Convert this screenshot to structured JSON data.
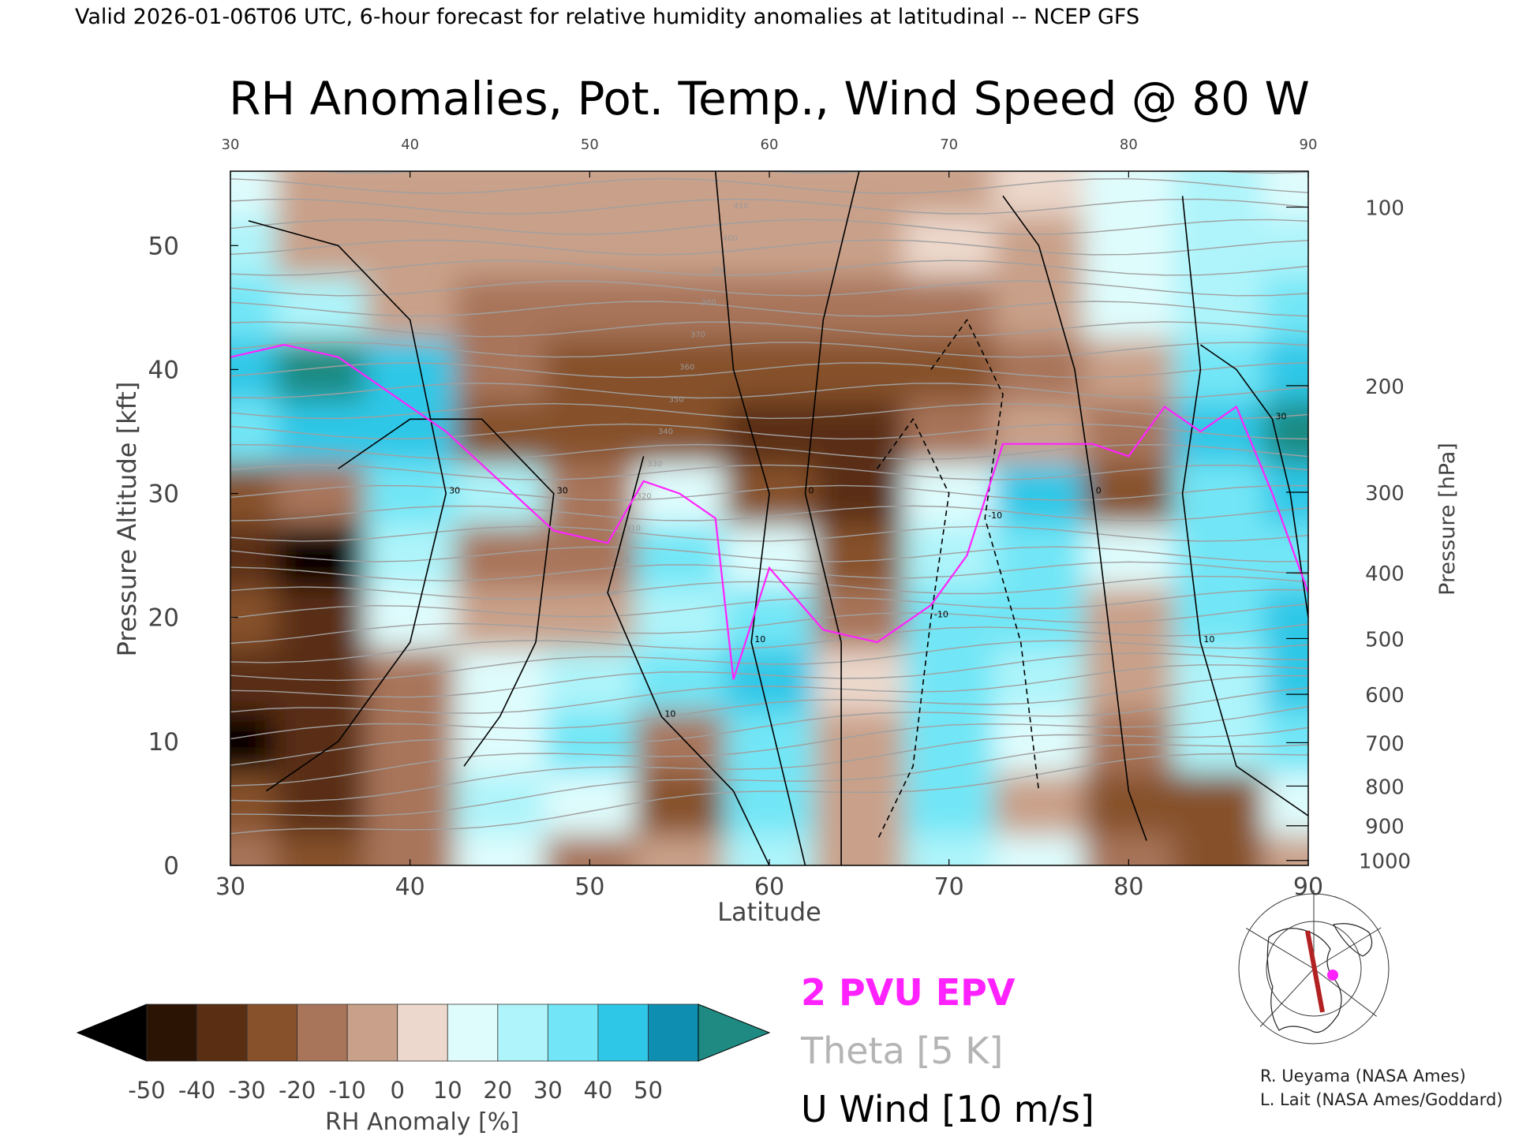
{
  "header": {
    "valid_line": "Valid 2026-01-06T06 UTC, 6-hour forecast for relative humidity anomalies at latitudinal -- NCEP GFS"
  },
  "chart_data": {
    "type": "heatmap",
    "title": "RH Anomalies, Pot. Temp., Wind Speed @ 80 W",
    "xlabel": "Latitude",
    "ylabel_left": "Pressure Altitude [kft]",
    "ylabel_right": "Pressure [hPa]",
    "xlim": [
      30,
      90
    ],
    "ylim": [
      0,
      56
    ],
    "x_ticks": [
      "30",
      "40",
      "50",
      "60",
      "70",
      "80",
      "90"
    ],
    "y_ticks": [
      "0",
      "10",
      "20",
      "30",
      "40",
      "50"
    ],
    "pressure_ticks": [
      {
        "label": "100",
        "kft": 53.1
      },
      {
        "label": "200",
        "kft": 38.7
      },
      {
        "label": "300",
        "kft": 30.1
      },
      {
        "label": "400",
        "kft": 23.6
      },
      {
        "label": "500",
        "kft": 18.3
      },
      {
        "label": "600",
        "kft": 13.8
      },
      {
        "label": "700",
        "kft": 9.9
      },
      {
        "label": "800",
        "kft": 6.4
      },
      {
        "label": "900",
        "kft": 3.2
      },
      {
        "label": "1000",
        "kft": 0.4
      }
    ],
    "colorbar": {
      "label": "RH Anomaly [%]",
      "ticks": [
        "-50",
        "-40",
        "-30",
        "-20",
        "-10",
        "0",
        "10",
        "20",
        "30",
        "40",
        "50"
      ],
      "colors": [
        "#2b1404",
        "#5a2e12",
        "#86512b",
        "#a8745a",
        "#c9a089",
        "#ecd8cc",
        "#dffcfd",
        "#aef4fa",
        "#72e6f6",
        "#2fc7e7",
        "#0e8fb2"
      ],
      "below_color": "#000000",
      "above_color": "#1e8a82"
    },
    "rh_anomaly_grid": {
      "lat": [
        30,
        35,
        40,
        45,
        50,
        55,
        60,
        65,
        70,
        75,
        80,
        85,
        90
      ],
      "kft": [
        0,
        5,
        10,
        15,
        20,
        25,
        30,
        35,
        40,
        45,
        50,
        55
      ],
      "values": [
        [
          -20,
          -30,
          -20,
          10,
          -20,
          -10,
          20,
          -10,
          20,
          10,
          -20,
          -30,
          -10
        ],
        [
          -30,
          -40,
          -20,
          20,
          10,
          -30,
          30,
          -10,
          30,
          -10,
          -30,
          -30,
          10
        ],
        [
          -50,
          -40,
          -20,
          10,
          30,
          -20,
          30,
          -10,
          30,
          10,
          -20,
          20,
          30
        ],
        [
          -40,
          -40,
          -20,
          10,
          20,
          30,
          40,
          0,
          30,
          20,
          -10,
          20,
          40
        ],
        [
          -30,
          -40,
          10,
          -10,
          -10,
          20,
          30,
          -20,
          30,
          30,
          -10,
          30,
          40
        ],
        [
          -40,
          -50,
          20,
          -20,
          -20,
          30,
          10,
          -30,
          20,
          30,
          10,
          30,
          30
        ],
        [
          -30,
          -20,
          30,
          20,
          -20,
          10,
          -30,
          -40,
          10,
          40,
          -30,
          30,
          40
        ],
        [
          30,
          40,
          40,
          -30,
          -30,
          -30,
          -40,
          -40,
          -20,
          -10,
          -20,
          40,
          50
        ],
        [
          40,
          50,
          40,
          -20,
          -30,
          -30,
          -30,
          -30,
          -30,
          -20,
          -10,
          30,
          40
        ],
        [
          30,
          20,
          -10,
          -20,
          -20,
          -20,
          -20,
          -20,
          -20,
          -10,
          10,
          20,
          30
        ],
        [
          20,
          -10,
          -10,
          -10,
          -10,
          -10,
          -10,
          -10,
          0,
          -10,
          10,
          20,
          20
        ],
        [
          10,
          -10,
          -10,
          -10,
          -10,
          -10,
          -10,
          -10,
          -10,
          0,
          10,
          20,
          10
        ]
      ]
    },
    "epv_2pvu_line": {
      "lat": [
        30,
        33,
        36,
        39,
        42,
        45,
        48,
        51,
        53,
        55,
        57,
        58,
        60,
        63,
        66,
        69,
        71,
        73,
        75,
        78,
        80,
        82,
        84,
        86,
        88,
        90
      ],
      "kft": [
        41,
        42,
        41,
        38,
        35,
        31,
        27,
        26,
        31,
        30,
        28,
        15,
        24,
        19,
        18,
        21,
        25,
        34,
        34,
        34,
        33,
        37,
        35,
        37,
        30,
        22
      ]
    },
    "legend": {
      "epv": "2 PVU EPV",
      "theta": "Theta [5 K]",
      "wind": "U Wind [10 m/s]"
    },
    "colors": {
      "epv": "#ff22ff",
      "theta": "#a0a0a0",
      "wind": "#000000"
    },
    "contour_labels": [
      "410",
      "400",
      "390",
      "380",
      "370",
      "360",
      "350",
      "340",
      "330",
      "320",
      "310",
      "300",
      "290",
      "30",
      "10",
      "0",
      "-10"
    ]
  },
  "credits": {
    "line1": "R. Ueyama (NASA Ames)",
    "line2": "L. Lait (NASA Ames/Goddard)"
  },
  "inset_map": {
    "marker_color": "#ff22ff",
    "section_color": "#b22222"
  }
}
